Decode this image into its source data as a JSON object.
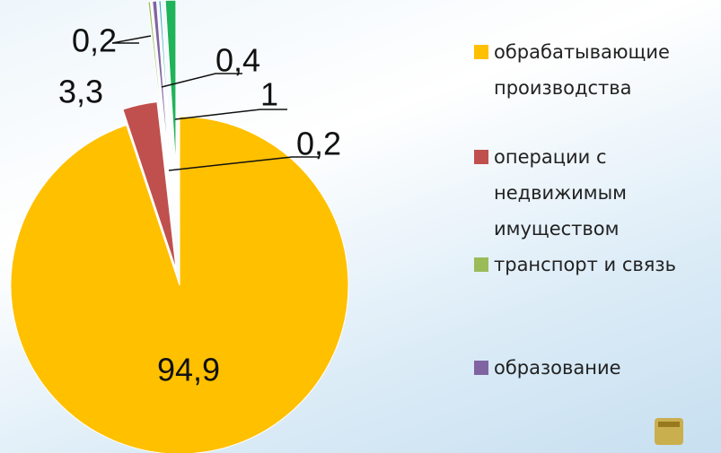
{
  "chart_data": {
    "type": "pie",
    "categories": [
      "обрабатывающие производства",
      "операции с недвижимым имуществом",
      "транспорт и связь",
      "образование",
      null,
      null
    ],
    "values": [
      94.9,
      3.3,
      0.2,
      0.4,
      0.2,
      1
    ],
    "value_labels": [
      "94,9",
      "3,3",
      "0,2",
      "0,4",
      "0,2",
      "1"
    ],
    "colors": [
      "#FFC000",
      "#C0504D",
      "#9BBB59",
      "#8064A2",
      "#4BACC6",
      "#1FB35A"
    ],
    "legend": "right"
  }
}
